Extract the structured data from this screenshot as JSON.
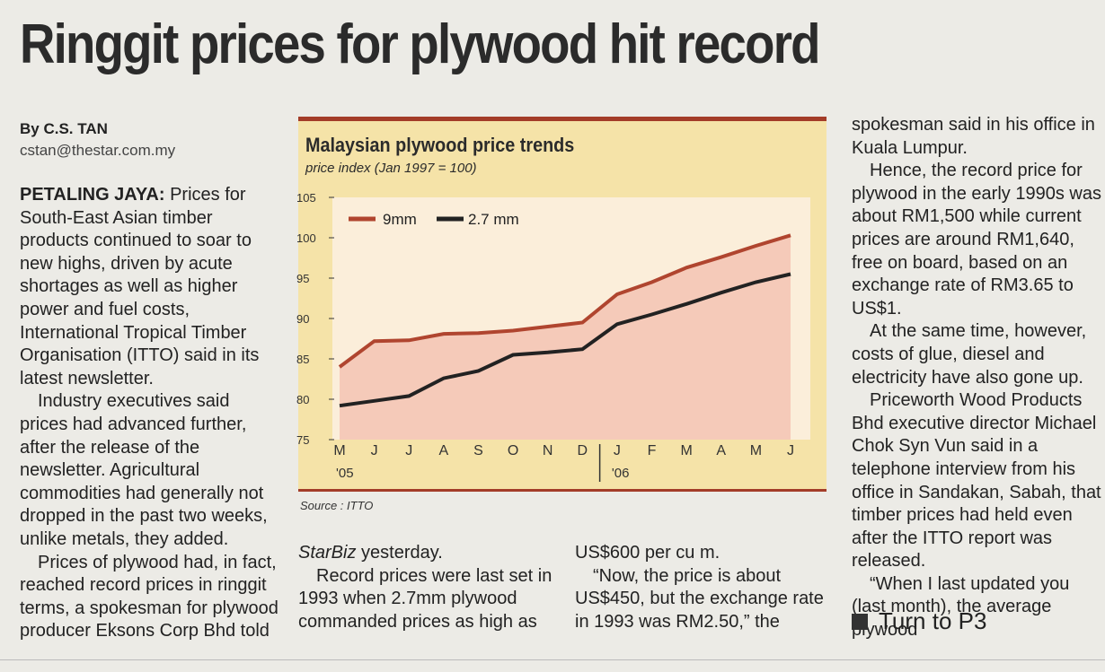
{
  "headline": "Ringgit prices for plywood hit record",
  "byline": {
    "name": "By C.S. TAN",
    "email": "cstan@thestar.com.my"
  },
  "col1": {
    "dateline": "PETALING JAYA:",
    "p1": " Prices for South-East Asian timber products continued to soar to new highs, driven by acute shortages as well as higher power and fuel costs, International Tropical Timber Organisation (ITTO) said in its latest newsletter.",
    "p2": "Industry executives said prices had advanced further, after the release of the newsletter. Agricultural commodities had generally not dropped in the past two weeks, unlike metals, they added.",
    "p3": "Prices of plywood had, in fact, reached record prices in ringgit terms, a spokesman for plywood producer Eksons Corp Bhd told"
  },
  "col2": {
    "p1_italic": "StarBiz",
    "p1_rest": " yesterday.",
    "p2": "Record prices were last set in 1993 when 2.7mm plywood commanded prices as high as"
  },
  "col3": {
    "p1": "US$600 per cu m.",
    "p2": "“Now, the price is about US$450, but the exchange rate in 1993 was RM2.50,” the"
  },
  "col4": {
    "p1": "spokesman said in his office in Kuala Lumpur.",
    "p2": "Hence, the record price for plywood in the early 1990s was about RM1,500 while current prices are around RM1,640, free on board, based on an exchange rate of RM3.65 to US$1.",
    "p3": "At the same time, however, costs of glue, diesel and electricity have also gone up.",
    "p4": "Priceworth Wood Products Bhd executive director Michael Chok Syn Vun said in a telephone interview from his office in Sandakan, Sabah, that timber prices had held even after the ITTO report was released.",
    "p5": "“When I last updated you (last month), the average plywood"
  },
  "turn": "Turn to P3",
  "source": "Source : ITTO",
  "colors": {
    "series_9mm": "#b0452f",
    "series_27mm": "#222222",
    "fill": "#f3c3b3",
    "panel": "#f5e3a8",
    "plot_bg": "#fbeeda"
  },
  "chart_data": {
    "type": "line",
    "title": "Malaysian plywood price trends",
    "ylabel": "price index (Jan 1997 = 100)",
    "xlabel": "",
    "ylim": [
      75,
      105
    ],
    "yticks": [
      75,
      80,
      85,
      90,
      95,
      100,
      105
    ],
    "categories": [
      "M",
      "J",
      "J",
      "A",
      "S",
      "O",
      "N",
      "D",
      "J",
      "F",
      "M",
      "A",
      "M",
      "J"
    ],
    "year_labels": [
      "'05",
      "'06"
    ],
    "series": [
      {
        "name": "9mm",
        "values": [
          84,
          87.2,
          87.3,
          88.1,
          88.2,
          88.5,
          89.0,
          89.5,
          93.0,
          94.5,
          96.3,
          97.6,
          99.0,
          100.3
        ]
      },
      {
        "name": "2.7 mm",
        "values": [
          79.2,
          79.8,
          80.4,
          82.6,
          83.5,
          85.5,
          85.8,
          86.2,
          89.3,
          90.5,
          91.8,
          93.2,
          94.5,
          95.5
        ]
      }
    ],
    "grid": false,
    "legend": "top-left"
  }
}
